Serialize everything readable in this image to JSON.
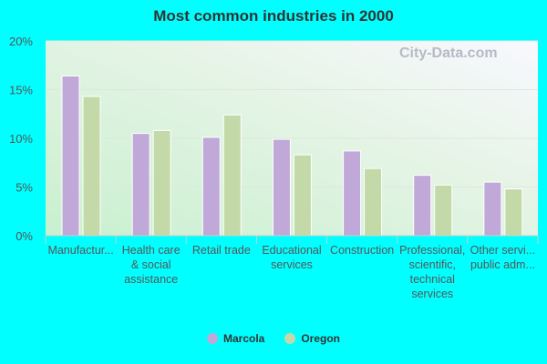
{
  "chart_data": {
    "type": "bar",
    "title": "Most common industries in 2000",
    "categories": [
      [
        "Manufactur..."
      ],
      [
        "Health care",
        "& social",
        "assistance"
      ],
      [
        "Retail trade"
      ],
      [
        "Educational",
        "services"
      ],
      [
        "Construction"
      ],
      [
        "Professional,",
        "scientific,",
        "technical",
        "services"
      ],
      [
        "Other servi...",
        "public adm..."
      ]
    ],
    "series": [
      {
        "name": "Marcola",
        "color": "#c0a8d8",
        "values": [
          16.4,
          10.5,
          10.1,
          9.9,
          8.7,
          6.2,
          5.5
        ]
      },
      {
        "name": "Oregon",
        "color": "#c4d9a8",
        "values": [
          14.3,
          10.8,
          12.4,
          8.3,
          6.9,
          5.2,
          4.8
        ]
      }
    ],
    "ylim": [
      0,
      20
    ],
    "yticks": [
      "0%",
      "5%",
      "10%",
      "15%",
      "20%"
    ],
    "grid": true,
    "legend": "bottom",
    "watermark": "City-Data.com"
  }
}
